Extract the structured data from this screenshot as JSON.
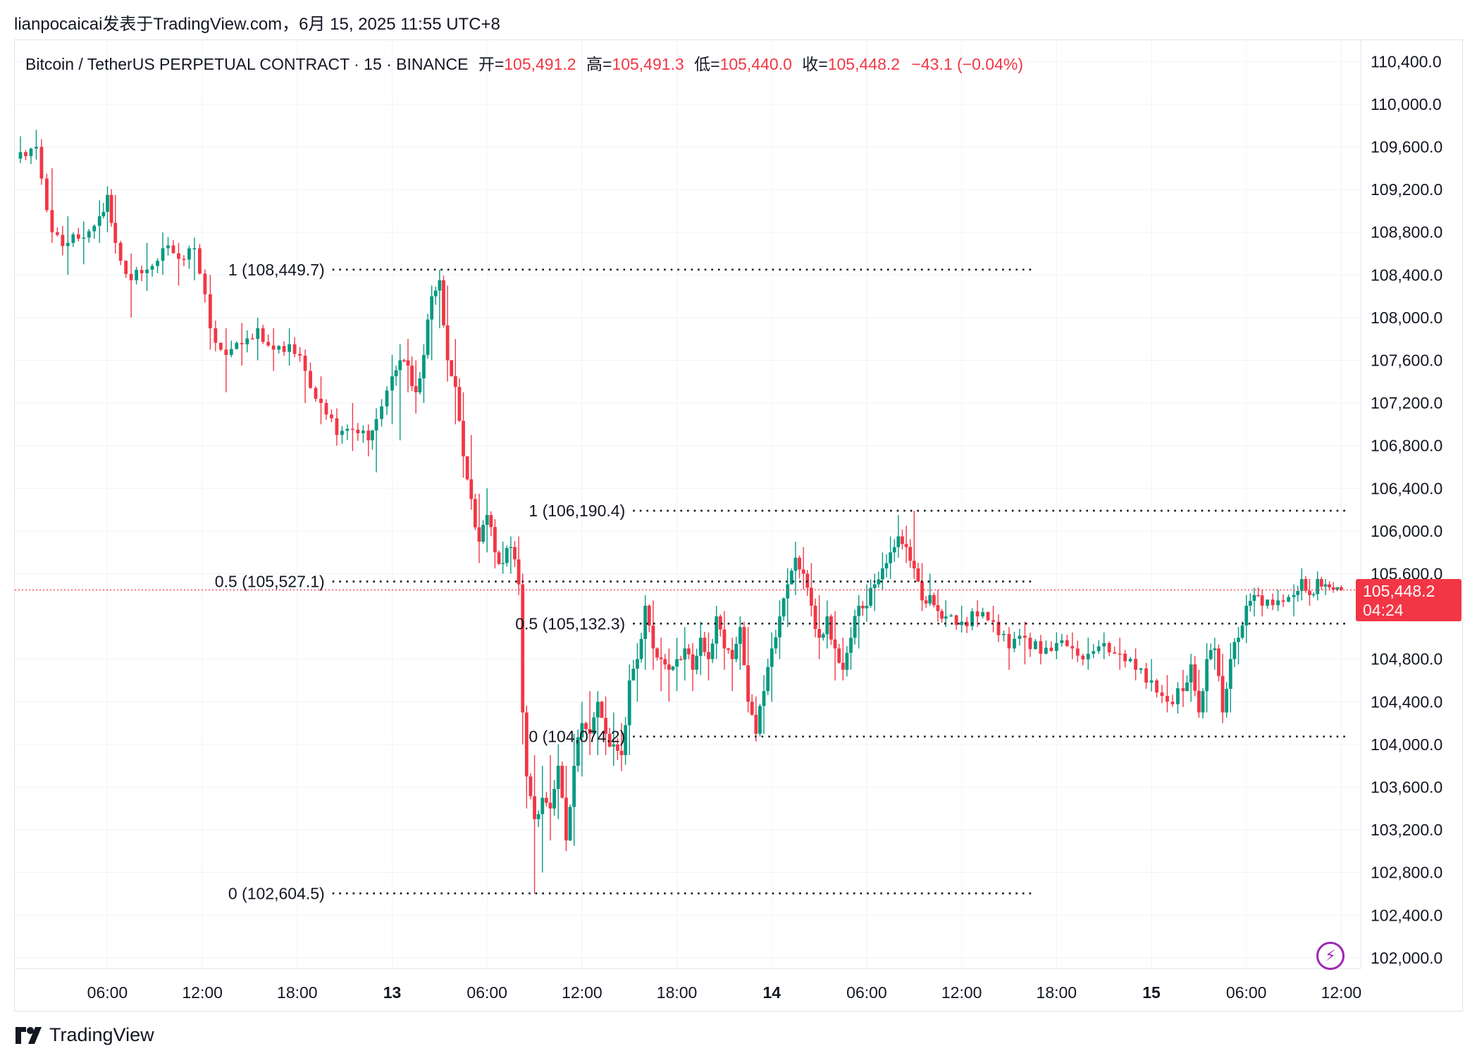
{
  "byline": "lianpocaicai发表于TradingView.com，6月 15, 2025 11:55 UTC+8",
  "legend": {
    "symbol": "Bitcoin / TetherUS PERPETUAL CONTRACT · 15 · BINANCE",
    "open_label": "开=",
    "open": "105,491.2",
    "high_label": "高=",
    "high": "105,491.3",
    "low_label": "低=",
    "low": "105,440.0",
    "close_label": "收=",
    "close": "105,448.2",
    "change": "−43.1 (−0.04%)"
  },
  "price_tag": {
    "price": "105,448.2",
    "countdown": "04:24"
  },
  "branding": "TradingView",
  "icons": {
    "bolt": "lightning-bolt-icon",
    "logo": "tradingview-logo-icon"
  },
  "colors": {
    "up": "#089981",
    "down": "#f23645",
    "grid": "#f0f3fa",
    "level": "#131722",
    "bolt": "#9c27b0"
  },
  "chart_data": {
    "type": "candlestick",
    "interval_minutes": 15,
    "ylim": [
      101900,
      110600
    ],
    "y_ticks": [
      "110,400.0",
      "110,000.0",
      "109,600.0",
      "109,200.0",
      "108,800.0",
      "108,400.0",
      "108,000.0",
      "107,600.0",
      "107,200.0",
      "106,800.0",
      "106,400.0",
      "106,000.0",
      "105,600.0",
      "104,800.0",
      "104,400.0",
      "104,000.0",
      "103,600.0",
      "103,200.0",
      "102,800.0",
      "102,400.0",
      "102,000.0"
    ],
    "y_tick_values": [
      110400,
      110000,
      109600,
      109200,
      108800,
      108400,
      108000,
      107600,
      107200,
      106800,
      106400,
      106000,
      105600,
      104800,
      104400,
      104000,
      103600,
      103200,
      102800,
      102400,
      102000
    ],
    "x_ticks": [
      {
        "label": "06:00",
        "t": "2025-06-12 06:00",
        "bold": false
      },
      {
        "label": "12:00",
        "t": "2025-06-12 12:00",
        "bold": false
      },
      {
        "label": "18:00",
        "t": "2025-06-12 18:00",
        "bold": false
      },
      {
        "label": "13",
        "t": "2025-06-13 00:00",
        "bold": true
      },
      {
        "label": "06:00",
        "t": "2025-06-13 06:00",
        "bold": false
      },
      {
        "label": "12:00",
        "t": "2025-06-13 12:00",
        "bold": false
      },
      {
        "label": "18:00",
        "t": "2025-06-13 18:00",
        "bold": false
      },
      {
        "label": "14",
        "t": "2025-06-14 00:00",
        "bold": true
      },
      {
        "label": "06:00",
        "t": "2025-06-14 06:00",
        "bold": false
      },
      {
        "label": "12:00",
        "t": "2025-06-14 12:00",
        "bold": false
      },
      {
        "label": "18:00",
        "t": "2025-06-14 18:00",
        "bold": false
      },
      {
        "label": "15",
        "t": "2025-06-15 00:00",
        "bold": true
      },
      {
        "label": "06:00",
        "t": "2025-06-15 06:00",
        "bold": false
      },
      {
        "label": "12:00",
        "t": "2025-06-15 12:00",
        "bold": false
      }
    ],
    "x_range": [
      "2025-06-12 00:30",
      "2025-06-15 12:15"
    ],
    "last_price": 105448.2,
    "fib_levels": [
      {
        "label": "1 (108,449.7)",
        "price": 108449.7,
        "from": "2025-06-12 20:00",
        "to": "2025-06-14 16:30"
      },
      {
        "label": "0.5 (105,527.1)",
        "price": 105527.1,
        "from": "2025-06-12 20:00",
        "to": "2025-06-14 16:30"
      },
      {
        "label": "0 (102,604.5)",
        "price": 102604.5,
        "from": "2025-06-12 20:00",
        "to": "2025-06-14 16:30"
      },
      {
        "label": "1 (106,190.4)",
        "price": 106190.4,
        "from": "2025-06-13 15:00",
        "to": "2025-06-15 12:15"
      },
      {
        "label": "0.5 (105,132.3)",
        "price": 105132.3,
        "from": "2025-06-13 15:00",
        "to": "2025-06-15 12:15"
      },
      {
        "label": "0 (104,074.2)",
        "price": 104074.2,
        "from": "2025-06-13 15:00",
        "to": "2025-06-15 12:15"
      }
    ],
    "series": [
      {
        "t": "2025-06-12 00:30",
        "close": 109550,
        "high": 109700,
        "low": 109450
      },
      {
        "t": "2025-06-12 01:30",
        "close": 109600,
        "high": 109760,
        "low": 109480
      },
      {
        "t": "2025-06-12 02:30",
        "close": 108800,
        "high": 109400,
        "low": 108700
      },
      {
        "t": "2025-06-12 03:30",
        "close": 108700,
        "high": 108950,
        "low": 108400
      },
      {
        "t": "2025-06-12 04:30",
        "close": 108750,
        "high": 108900,
        "low": 108500
      },
      {
        "t": "2025-06-12 05:30",
        "close": 108950,
        "high": 109100,
        "low": 108700
      },
      {
        "t": "2025-06-12 06:00",
        "close": 109150,
        "high": 109200,
        "low": 108800
      },
      {
        "t": "2025-06-12 06:30",
        "close": 108700,
        "high": 109150,
        "low": 108600
      },
      {
        "t": "2025-06-12 07:30",
        "close": 108350,
        "high": 108600,
        "low": 108000
      },
      {
        "t": "2025-06-12 08:30",
        "close": 108450,
        "high": 108700,
        "low": 108250
      },
      {
        "t": "2025-06-12 09:30",
        "close": 108650,
        "high": 108800,
        "low": 108400
      },
      {
        "t": "2025-06-12 10:30",
        "close": 108550,
        "high": 108700,
        "low": 108300
      },
      {
        "t": "2025-06-12 11:30",
        "close": 108650,
        "high": 108750,
        "low": 108350
      },
      {
        "t": "2025-06-12 12:30",
        "close": 107900,
        "high": 108400,
        "low": 107700
      },
      {
        "t": "2025-06-12 13:30",
        "close": 107650,
        "high": 107900,
        "low": 107300
      },
      {
        "t": "2025-06-12 14:30",
        "close": 107750,
        "high": 107950,
        "low": 107550
      },
      {
        "t": "2025-06-12 15:30",
        "close": 107900,
        "high": 108000,
        "low": 107600
      },
      {
        "t": "2025-06-12 16:30",
        "close": 107700,
        "high": 107900,
        "low": 107500
      },
      {
        "t": "2025-06-12 17:30",
        "close": 107750,
        "high": 107900,
        "low": 107550
      },
      {
        "t": "2025-06-12 18:30",
        "close": 107500,
        "high": 107700,
        "low": 107200
      },
      {
        "t": "2025-06-12 19:30",
        "close": 107200,
        "high": 107450,
        "low": 107000
      },
      {
        "t": "2025-06-12 20:30",
        "close": 106900,
        "high": 107150,
        "low": 106800
      },
      {
        "t": "2025-06-12 21:30",
        "close": 106950,
        "high": 107200,
        "low": 106750
      },
      {
        "t": "2025-06-12 22:30",
        "close": 106850,
        "high": 107000,
        "low": 106700
      },
      {
        "t": "2025-06-12 23:00",
        "close": 107050,
        "high": 107150,
        "low": 106550
      },
      {
        "t": "2025-06-13 00:00",
        "close": 107450,
        "high": 107650,
        "low": 107000
      },
      {
        "t": "2025-06-13 00:30",
        "close": 107600,
        "high": 107750,
        "low": 106850
      },
      {
        "t": "2025-06-13 01:00",
        "close": 107550,
        "high": 107800,
        "low": 107300
      },
      {
        "t": "2025-06-13 01:30",
        "close": 107300,
        "high": 107600,
        "low": 107100
      },
      {
        "t": "2025-06-13 02:00",
        "close": 107650,
        "high": 107750,
        "low": 107200
      },
      {
        "t": "2025-06-13 02:30",
        "close": 108200,
        "high": 108300,
        "low": 107600
      },
      {
        "t": "2025-06-13 03:00",
        "close": 108350,
        "high": 108450,
        "low": 107900
      },
      {
        "t": "2025-06-13 03:30",
        "close": 107600,
        "high": 108300,
        "low": 107400
      },
      {
        "t": "2025-06-13 04:00",
        "close": 107350,
        "high": 107800,
        "low": 107000
      },
      {
        "t": "2025-06-13 04:30",
        "close": 106700,
        "high": 107300,
        "low": 106500
      },
      {
        "t": "2025-06-13 05:00",
        "close": 106300,
        "high": 106900,
        "low": 106200
      },
      {
        "t": "2025-06-13 05:30",
        "close": 105900,
        "high": 106350,
        "low": 105700
      },
      {
        "t": "2025-06-13 06:00",
        "close": 106150,
        "high": 106400,
        "low": 105800
      },
      {
        "t": "2025-06-13 06:30",
        "close": 105800,
        "high": 106100,
        "low": 105650
      },
      {
        "t": "2025-06-13 07:00",
        "close": 105700,
        "high": 105900,
        "low": 105600
      },
      {
        "t": "2025-06-13 07:30",
        "close": 105850,
        "high": 105950,
        "low": 105600
      },
      {
        "t": "2025-06-13 08:00",
        "close": 105500,
        "high": 105950,
        "low": 105400
      },
      {
        "t": "2025-06-13 08:15",
        "close": 104300,
        "high": 105600,
        "low": 104000
      },
      {
        "t": "2025-06-13 08:30",
        "close": 103700,
        "high": 104300,
        "low": 103400
      },
      {
        "t": "2025-06-13 09:00",
        "close": 103300,
        "high": 103900,
        "low": 102600
      },
      {
        "t": "2025-06-13 09:30",
        "close": 103500,
        "high": 103800,
        "low": 102800
      },
      {
        "t": "2025-06-13 10:00",
        "close": 103400,
        "high": 103900,
        "low": 103100
      },
      {
        "t": "2025-06-13 10:30",
        "close": 103800,
        "high": 104000,
        "low": 103300
      },
      {
        "t": "2025-06-13 11:00",
        "close": 103100,
        "high": 103800,
        "low": 103000
      },
      {
        "t": "2025-06-13 11:30",
        "close": 103800,
        "high": 104100,
        "low": 103050
      },
      {
        "t": "2025-06-13 12:00",
        "close": 104200,
        "high": 104400,
        "low": 103700
      },
      {
        "t": "2025-06-13 12:30",
        "close": 104100,
        "high": 104500,
        "low": 103900
      },
      {
        "t": "2025-06-13 13:00",
        "close": 104400,
        "high": 104500,
        "low": 103900
      },
      {
        "t": "2025-06-13 13:30",
        "close": 104100,
        "high": 104450,
        "low": 103900
      },
      {
        "t": "2025-06-13 14:00",
        "close": 104000,
        "high": 104300,
        "low": 103800
      },
      {
        "t": "2025-06-13 14:30",
        "close": 103900,
        "high": 104200,
        "low": 103750
      },
      {
        "t": "2025-06-13 15:00",
        "close": 104600,
        "high": 104750,
        "low": 103900
      },
      {
        "t": "2025-06-13 15:30",
        "close": 104800,
        "high": 104950,
        "low": 104400
      },
      {
        "t": "2025-06-13 16:00",
        "close": 105300,
        "high": 105400,
        "low": 104700
      },
      {
        "t": "2025-06-13 16:30",
        "close": 104900,
        "high": 105350,
        "low": 104700
      },
      {
        "t": "2025-06-13 17:00",
        "close": 104800,
        "high": 105000,
        "low": 104500
      },
      {
        "t": "2025-06-13 17:30",
        "close": 104700,
        "high": 104900,
        "low": 104400
      },
      {
        "t": "2025-06-13 18:00",
        "close": 104800,
        "high": 105000,
        "low": 104500
      },
      {
        "t": "2025-06-13 18:30",
        "close": 104900,
        "high": 105100,
        "low": 104600
      },
      {
        "t": "2025-06-13 19:00",
        "close": 104700,
        "high": 104950,
        "low": 104500
      },
      {
        "t": "2025-06-13 19:30",
        "close": 105000,
        "high": 105150,
        "low": 104650
      },
      {
        "t": "2025-06-13 20:00",
        "close": 104800,
        "high": 105050,
        "low": 104600
      },
      {
        "t": "2025-06-13 20:30",
        "close": 105200,
        "high": 105300,
        "low": 104800
      },
      {
        "t": "2025-06-13 21:00",
        "close": 104900,
        "high": 105250,
        "low": 104700
      },
      {
        "t": "2025-06-13 21:30",
        "close": 104800,
        "high": 105000,
        "low": 104500
      },
      {
        "t": "2025-06-13 22:00",
        "close": 105100,
        "high": 105200,
        "low": 104700
      },
      {
        "t": "2025-06-13 22:30",
        "close": 104400,
        "high": 105100,
        "low": 104300
      },
      {
        "t": "2025-06-13 23:00",
        "close": 104100,
        "high": 104450,
        "low": 104070
      },
      {
        "t": "2025-06-13 23:30",
        "close": 104500,
        "high": 104650,
        "low": 104100
      },
      {
        "t": "2025-06-14 00:00",
        "close": 104900,
        "high": 105050,
        "low": 104400
      },
      {
        "t": "2025-06-14 00:30",
        "close": 105200,
        "high": 105350,
        "low": 104800
      },
      {
        "t": "2025-06-14 01:00",
        "close": 105500,
        "high": 105650,
        "low": 105100
      },
      {
        "t": "2025-06-14 01:30",
        "close": 105750,
        "high": 105900,
        "low": 105400
      },
      {
        "t": "2025-06-14 02:00",
        "close": 105600,
        "high": 105850,
        "low": 105450
      },
      {
        "t": "2025-06-14 02:30",
        "close": 105300,
        "high": 105700,
        "low": 105200
      },
      {
        "t": "2025-06-14 03:00",
        "close": 105000,
        "high": 105400,
        "low": 104800
      },
      {
        "t": "2025-06-14 03:30",
        "close": 105200,
        "high": 105350,
        "low": 104900
      },
      {
        "t": "2025-06-14 04:00",
        "close": 104900,
        "high": 105250,
        "low": 104600
      },
      {
        "t": "2025-06-14 04:30",
        "close": 104700,
        "high": 105000,
        "low": 104600
      },
      {
        "t": "2025-06-14 05:00",
        "close": 105000,
        "high": 105100,
        "low": 104700
      },
      {
        "t": "2025-06-14 05:30",
        "close": 105300,
        "high": 105400,
        "low": 104900
      },
      {
        "t": "2025-06-14 06:00",
        "close": 105300,
        "high": 105500,
        "low": 105150
      },
      {
        "t": "2025-06-14 06:30",
        "close": 105500,
        "high": 105600,
        "low": 105250
      },
      {
        "t": "2025-06-14 07:00",
        "close": 105650,
        "high": 105800,
        "low": 105450
      },
      {
        "t": "2025-06-14 07:30",
        "close": 105800,
        "high": 105950,
        "low": 105550
      },
      {
        "t": "2025-06-14 08:00",
        "close": 105950,
        "high": 106150,
        "low": 105750
      },
      {
        "t": "2025-06-14 08:30",
        "close": 105850,
        "high": 106050,
        "low": 105700
      },
      {
        "t": "2025-06-14 09:00",
        "close": 105650,
        "high": 106190,
        "low": 105550
      },
      {
        "t": "2025-06-14 09:30",
        "close": 105350,
        "high": 105700,
        "low": 105250
      },
      {
        "t": "2025-06-14 10:00",
        "close": 105400,
        "high": 105600,
        "low": 105300
      },
      {
        "t": "2025-06-14 10:30",
        "close": 105250,
        "high": 105450,
        "low": 105150
      },
      {
        "t": "2025-06-14 11:00",
        "close": 105200,
        "high": 105350,
        "low": 105100
      },
      {
        "t": "2025-06-14 12:00",
        "close": 105150,
        "high": 105300,
        "low": 105050
      },
      {
        "t": "2025-06-14 13:00",
        "close": 105200,
        "high": 105350,
        "low": 105100
      },
      {
        "t": "2025-06-14 14:00",
        "close": 105150,
        "high": 105300,
        "low": 105050
      },
      {
        "t": "2025-06-14 15:00",
        "close": 104900,
        "high": 105100,
        "low": 104700
      },
      {
        "t": "2025-06-14 16:00",
        "close": 105000,
        "high": 105150,
        "low": 104750
      },
      {
        "t": "2025-06-14 17:00",
        "close": 104850,
        "high": 105000,
        "low": 104750
      },
      {
        "t": "2025-06-14 18:00",
        "close": 104950,
        "high": 105050,
        "low": 104800
      },
      {
        "t": "2025-06-14 19:00",
        "close": 104900,
        "high": 105050,
        "low": 104800
      },
      {
        "t": "2025-06-14 20:00",
        "close": 104850,
        "high": 105000,
        "low": 104700
      },
      {
        "t": "2025-06-14 21:00",
        "close": 104950,
        "high": 105050,
        "low": 104800
      },
      {
        "t": "2025-06-14 22:00",
        "close": 104850,
        "high": 105000,
        "low": 104700
      },
      {
        "t": "2025-06-14 23:00",
        "close": 104700,
        "high": 104900,
        "low": 104600
      },
      {
        "t": "2025-06-15 00:00",
        "close": 104600,
        "high": 104800,
        "low": 104500
      },
      {
        "t": "2025-06-15 01:00",
        "close": 104400,
        "high": 104650,
        "low": 104300
      },
      {
        "t": "2025-06-15 02:00",
        "close": 104500,
        "high": 104700,
        "low": 104350
      },
      {
        "t": "2025-06-15 02:30",
        "close": 104750,
        "high": 104850,
        "low": 104400
      },
      {
        "t": "2025-06-15 03:00",
        "close": 104300,
        "high": 104700,
        "low": 104250
      },
      {
        "t": "2025-06-15 03:30",
        "close": 104800,
        "high": 104950,
        "low": 104300
      },
      {
        "t": "2025-06-15 04:00",
        "close": 104900,
        "high": 105000,
        "low": 104700
      },
      {
        "t": "2025-06-15 04:30",
        "close": 104300,
        "high": 104850,
        "low": 104200
      },
      {
        "t": "2025-06-15 05:00",
        "close": 104800,
        "high": 104950,
        "low": 104300
      },
      {
        "t": "2025-06-15 05:30",
        "close": 105000,
        "high": 105100,
        "low": 104750
      },
      {
        "t": "2025-06-15 06:00",
        "close": 105300,
        "high": 105400,
        "low": 104950
      },
      {
        "t": "2025-06-15 06:30",
        "close": 105400,
        "high": 105450,
        "low": 105200
      },
      {
        "t": "2025-06-15 07:00",
        "close": 105300,
        "high": 105450,
        "low": 105200
      },
      {
        "t": "2025-06-15 08:00",
        "close": 105350,
        "high": 105450,
        "low": 105250
      },
      {
        "t": "2025-06-15 09:00",
        "close": 105400,
        "high": 105500,
        "low": 105200
      },
      {
        "t": "2025-06-15 09:30",
        "close": 105550,
        "high": 105650,
        "low": 105350
      },
      {
        "t": "2025-06-15 10:00",
        "close": 105400,
        "high": 105550,
        "low": 105300
      },
      {
        "t": "2025-06-15 10:30",
        "close": 105550,
        "high": 105600,
        "low": 105350
      },
      {
        "t": "2025-06-15 11:00",
        "close": 105500,
        "high": 105550,
        "low": 105400
      },
      {
        "t": "2025-06-15 11:30",
        "close": 105450,
        "high": 105520,
        "low": 105420
      },
      {
        "t": "2025-06-15 12:00",
        "close": 105448.2,
        "high": 105491.3,
        "low": 105440
      }
    ]
  }
}
